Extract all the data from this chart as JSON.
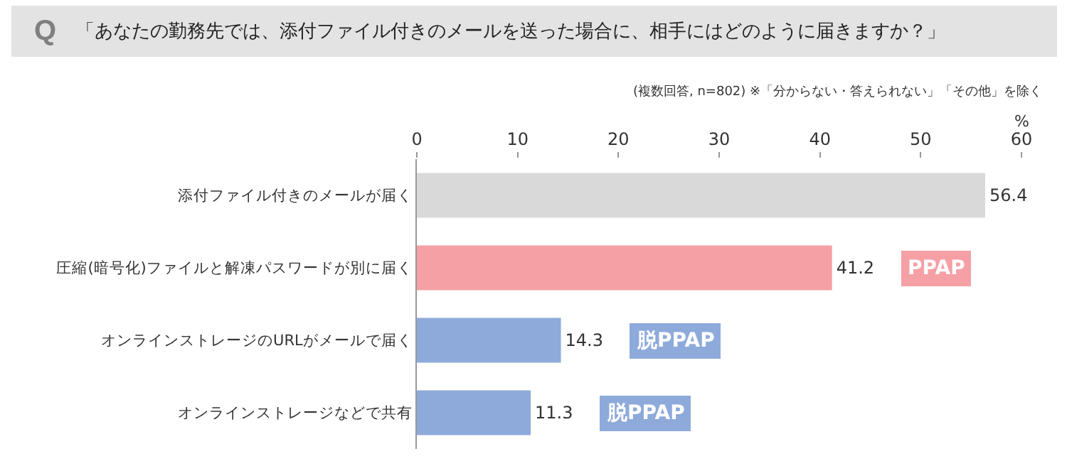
{
  "chart_data": {
    "type": "bar",
    "orientation": "horizontal",
    "title": "「あなたの勤務先では、添付ファイル付きのメールを送った場合に、相手にはどのように届きますか？」",
    "subtitle": "(複数回答, n=802) ※「分からない・答えられない」「その他」を除く",
    "xlabel": "%",
    "categories": [
      "添付ファイル付きのメールが届く",
      "圧縮(暗号化)ファイルと解凍パスワードが別に届く",
      "オンラインストレージのURLがメールで届く",
      "オンラインストレージなどで共有"
    ],
    "values": [
      56.4,
      41.2,
      14.3,
      11.3
    ],
    "colors": [
      "#d9d9d9",
      "#f4a0a5",
      "#8eaadb",
      "#8eaadb"
    ],
    "xlim": [
      0,
      60
    ],
    "xticks": [
      0,
      10,
      20,
      30,
      40,
      50,
      60
    ],
    "data_labels": true,
    "grid": false,
    "legend": false,
    "annotations": [
      "Q",
      "PPAP",
      "脱PPAP",
      "脱PPAP"
    ]
  }
}
